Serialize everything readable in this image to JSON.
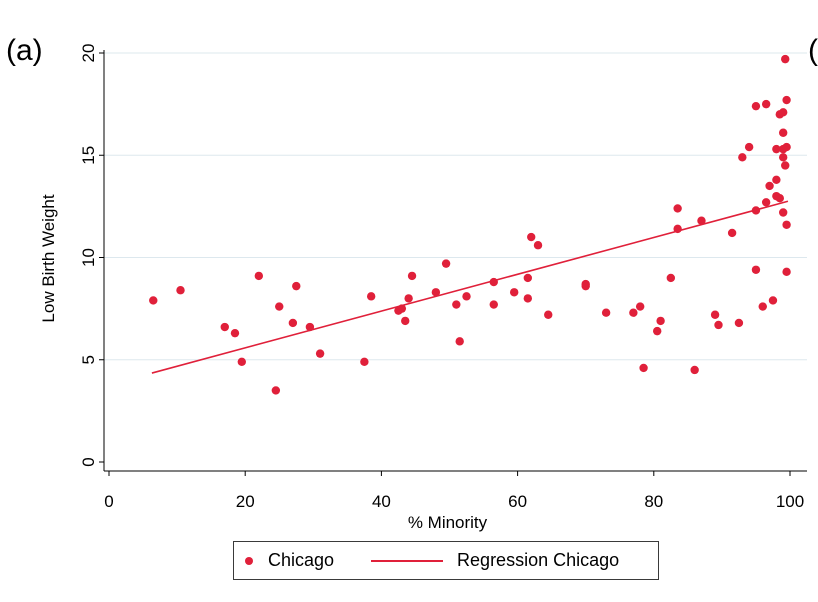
{
  "panel": {
    "label": "(a)",
    "next_label": "("
  },
  "legend": {
    "scatter_label": "Chicago",
    "line_label": "Regression Chicago"
  },
  "chart_data": {
    "type": "scatter",
    "title": "",
    "xlabel": "% Minority",
    "ylabel": "Low Birth Weight",
    "xlim": [
      0,
      100
    ],
    "ylim": [
      0,
      20
    ],
    "xticks": [
      0,
      20,
      40,
      60,
      80,
      100
    ],
    "yticks": [
      0,
      5,
      10,
      15,
      20
    ],
    "grid": "horizontal",
    "legend_position": "bottom",
    "color": "#e0203a",
    "series": [
      {
        "name": "Chicago",
        "kind": "scatter",
        "points": [
          [
            6.5,
            7.9
          ],
          [
            10.5,
            8.4
          ],
          [
            17,
            6.6
          ],
          [
            18.5,
            6.3
          ],
          [
            19.5,
            4.9
          ],
          [
            22,
            9.1
          ],
          [
            24.5,
            3.5
          ],
          [
            25,
            7.6
          ],
          [
            27,
            6.8
          ],
          [
            27.5,
            8.6
          ],
          [
            29.5,
            6.6
          ],
          [
            31,
            5.3
          ],
          [
            37.5,
            4.9
          ],
          [
            38.5,
            8.1
          ],
          [
            42.5,
            7.4
          ],
          [
            43,
            7.5
          ],
          [
            43.5,
            6.9
          ],
          [
            44,
            8.0
          ],
          [
            44.5,
            9.1
          ],
          [
            48,
            8.3
          ],
          [
            49.5,
            9.7
          ],
          [
            51,
            7.7
          ],
          [
            51.5,
            5.9
          ],
          [
            52.5,
            8.1
          ],
          [
            56.5,
            8.8
          ],
          [
            56.5,
            7.7
          ],
          [
            59.5,
            8.3
          ],
          [
            61.5,
            8.0
          ],
          [
            61.5,
            9.0
          ],
          [
            62,
            11.0
          ],
          [
            63,
            10.6
          ],
          [
            64.5,
            7.2
          ],
          [
            70,
            8.7
          ],
          [
            70,
            8.6
          ],
          [
            73,
            7.3
          ],
          [
            77,
            7.3
          ],
          [
            78,
            7.6
          ],
          [
            78.5,
            4.6
          ],
          [
            80.5,
            6.4
          ],
          [
            81,
            6.9
          ],
          [
            82.5,
            9.0
          ],
          [
            83.5,
            11.4
          ],
          [
            83.5,
            12.4
          ],
          [
            86,
            4.5
          ],
          [
            87,
            11.8
          ],
          [
            89,
            7.2
          ],
          [
            89.5,
            6.7
          ],
          [
            91.5,
            11.2
          ],
          [
            92.5,
            6.8
          ],
          [
            93,
            14.9
          ],
          [
            94,
            15.4
          ],
          [
            95,
            12.3
          ],
          [
            95,
            17.4
          ],
          [
            95,
            9.4
          ],
          [
            96,
            7.6
          ],
          [
            96.5,
            12.7
          ],
          [
            96.5,
            17.5
          ],
          [
            97,
            13.5
          ],
          [
            97.5,
            7.9
          ],
          [
            98,
            13.0
          ],
          [
            98,
            15.3
          ],
          [
            98,
            13.8
          ],
          [
            98.5,
            12.9
          ],
          [
            98.5,
            17.0
          ],
          [
            99,
            17.1
          ],
          [
            99,
            12.2
          ],
          [
            99,
            15.3
          ],
          [
            99,
            16.1
          ],
          [
            99,
            14.9
          ],
          [
            99.3,
            14.5
          ],
          [
            99.3,
            19.7
          ],
          [
            99.5,
            15.4
          ],
          [
            99.5,
            11.6
          ],
          [
            99.5,
            9.3
          ],
          [
            99.5,
            17.7
          ]
        ]
      },
      {
        "name": "Regression Chicago",
        "kind": "line",
        "points": [
          [
            6.3,
            4.35
          ],
          [
            99.7,
            12.75
          ]
        ]
      }
    ]
  }
}
